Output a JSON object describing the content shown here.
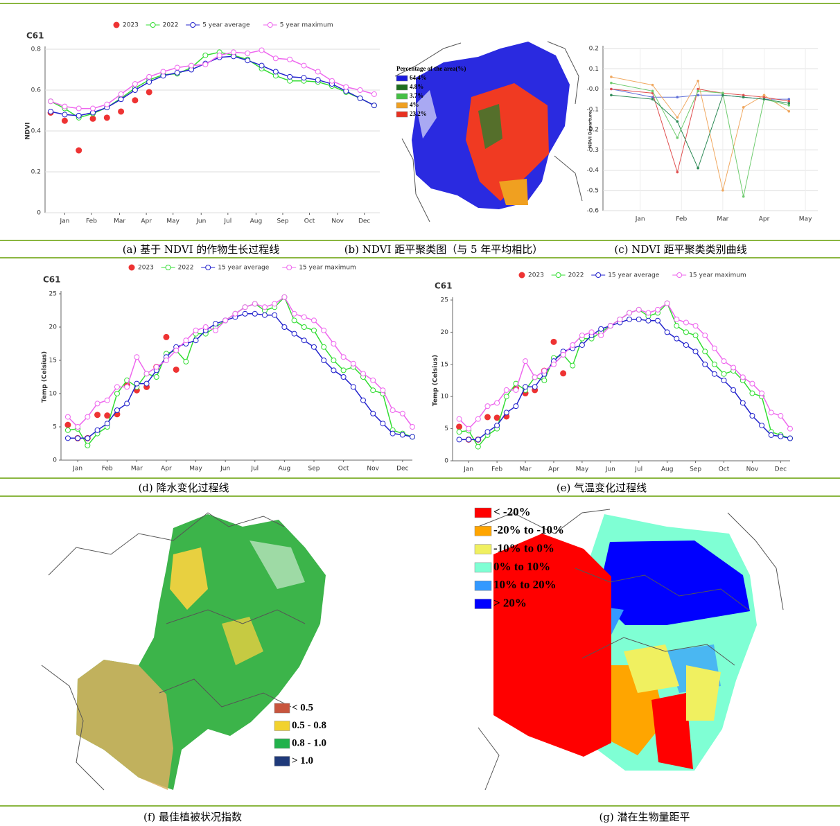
{
  "chart_data": [
    {
      "type": "line",
      "title": "C61",
      "y_label": "NDVI",
      "x": [
        0,
        1,
        2,
        3,
        4,
        5,
        6,
        7,
        8,
        9,
        10,
        11,
        12,
        13,
        14,
        15,
        16,
        17,
        18,
        19,
        20,
        21,
        22,
        23
      ],
      "xlim": [
        -0.4,
        23.4
      ],
      "xticks": [
        {
          "value": 1,
          "label": "Jan"
        },
        {
          "value": 2.9,
          "label": "Feb"
        },
        {
          "value": 4.9,
          "label": "Mar"
        },
        {
          "value": 6.8,
          "label": "Apr"
        },
        {
          "value": 8.7,
          "label": "May"
        },
        {
          "value": 10.7,
          "label": "Jun"
        },
        {
          "value": 12.6,
          "label": "Jul"
        },
        {
          "value": 14.6,
          "label": "Aug"
        },
        {
          "value": 16.5,
          "label": "Sep"
        },
        {
          "value": 18.4,
          "label": "Oct"
        },
        {
          "value": 20.4,
          "label": "Nov"
        },
        {
          "value": 22.3,
          "label": "Dec"
        }
      ],
      "ylim": [
        0,
        0.8
      ],
      "yticks": [
        0,
        0.2,
        0.4,
        0.6,
        0.8
      ],
      "grid": true,
      "series": [
        {
          "name": "2023",
          "color": "#ee3333",
          "marker_only": true,
          "values": [
            0.49,
            0.45,
            0.305,
            0.46,
            0.465,
            0.495,
            0.55,
            0.59,
            null,
            null,
            null,
            null,
            null,
            null,
            null,
            null,
            null,
            null,
            null,
            null,
            null,
            null,
            null,
            null
          ]
        },
        {
          "name": "2022",
          "color": "#33dd33",
          "values": [
            0.545,
            0.51,
            0.465,
            0.485,
            0.515,
            0.56,
            0.61,
            0.65,
            0.675,
            0.68,
            0.71,
            0.77,
            0.785,
            0.77,
            0.75,
            0.705,
            0.67,
            0.645,
            0.645,
            0.64,
            0.62,
            0.59,
            0.56,
            0.525
          ]
        },
        {
          "name": "5 year average",
          "color": "#2222cc",
          "values": [
            0.495,
            0.48,
            0.475,
            0.49,
            0.515,
            0.555,
            0.6,
            0.64,
            0.67,
            0.685,
            0.7,
            0.73,
            0.76,
            0.765,
            0.745,
            0.72,
            0.69,
            0.665,
            0.66,
            0.65,
            0.63,
            0.595,
            0.56,
            0.525
          ]
        },
        {
          "name": "5 year maximum",
          "color": "#ee66ee",
          "values": [
            0.545,
            0.52,
            0.51,
            0.51,
            0.53,
            0.58,
            0.63,
            0.665,
            0.69,
            0.71,
            0.72,
            0.725,
            0.77,
            0.785,
            0.78,
            0.795,
            0.755,
            0.75,
            0.72,
            0.69,
            0.645,
            0.615,
            0.6,
            0.58
          ]
        }
      ],
      "caption": "(a) 基于 NDVI 的作物生长过程线"
    },
    {
      "type": "map",
      "legend_title": "Percentage of the area(%)",
      "legend": [
        {
          "label": "64.4%",
          "color": "#1a1adc"
        },
        {
          "label": "4.8%",
          "color": "#1e6e1e"
        },
        {
          "label": "3.7%",
          "color": "#44c044"
        },
        {
          "label": "4%",
          "color": "#f0a020"
        },
        {
          "label": "23.2%",
          "color": "#e83020"
        }
      ],
      "caption": "(b) NDVI 距平聚类图（与 5 年平均相比）"
    },
    {
      "type": "line",
      "y_label": "NDVI Departure",
      "x": [
        0.3,
        1.3,
        1.9,
        2.4,
        3.0,
        3.5,
        4.0,
        4.6
      ],
      "xlim": [
        0.1,
        5.3
      ],
      "xticks": [
        {
          "value": 1,
          "label": "Jan"
        },
        {
          "value": 2,
          "label": "Feb"
        },
        {
          "value": 3,
          "label": "Mar"
        },
        {
          "value": 4,
          "label": "Apr"
        },
        {
          "value": 5,
          "label": "May"
        }
      ],
      "ylim": [
        -0.6,
        0.2
      ],
      "yticks": [
        -0.6,
        -0.5,
        -0.4,
        -0.3,
        -0.2,
        -0.1,
        {
          "value": 0,
          "label": "-0.0"
        },
        0.1,
        0.2
      ],
      "grid": true,
      "series": [
        {
          "color": "#6070d8",
          "values": [
            0.0,
            -0.04,
            -0.04,
            -0.03,
            -0.03,
            -0.04,
            -0.05,
            -0.05
          ]
        },
        {
          "color": "#e05050",
          "values": [
            0.0,
            -0.02,
            -0.41,
            0.0,
            -0.02,
            -0.03,
            -0.04,
            -0.06
          ]
        },
        {
          "color": "#f0a860",
          "values": [
            0.06,
            0.02,
            -0.14,
            0.04,
            -0.5,
            -0.09,
            -0.03,
            -0.11
          ]
        },
        {
          "color": "#70cc70",
          "values": [
            0.03,
            -0.01,
            -0.24,
            -0.01,
            -0.02,
            -0.53,
            -0.05,
            -0.08
          ]
        },
        {
          "color": "#2e8b57",
          "values": [
            -0.03,
            -0.05,
            -0.16,
            -0.39,
            -0.03,
            -0.04,
            -0.05,
            -0.07
          ]
        }
      ],
      "caption": "(c) NDVI 距平聚类类别曲线"
    },
    {
      "type": "line",
      "title": "C61",
      "y_label": "Temp (Celsius)",
      "x": [
        0,
        1,
        2,
        3,
        4,
        5,
        6,
        7,
        8,
        9,
        10,
        11,
        12,
        13,
        14,
        15,
        16,
        17,
        18,
        19,
        20,
        21,
        22,
        23,
        24,
        25,
        26,
        27,
        28,
        29,
        30,
        31,
        32,
        33,
        34,
        35
      ],
      "xlim": [
        -0.7,
        35
      ],
      "xticks": [
        {
          "value": 1,
          "label": "Jan"
        },
        {
          "value": 4,
          "label": "Feb"
        },
        {
          "value": 7,
          "label": "Mar"
        },
        {
          "value": 10,
          "label": "Apr"
        },
        {
          "value": 13,
          "label": "May"
        },
        {
          "value": 16,
          "label": "Jun"
        },
        {
          "value": 19,
          "label": "Jul"
        },
        {
          "value": 22,
          "label": "Aug"
        },
        {
          "value": 25,
          "label": "Sep"
        },
        {
          "value": 28,
          "label": "Oct"
        },
        {
          "value": 31,
          "label": "Nov"
        },
        {
          "value": 34,
          "label": "Dec"
        }
      ],
      "ylim": [
        0,
        25
      ],
      "yticks": [
        0,
        5,
        10,
        15,
        20,
        25
      ],
      "grid": false,
      "series": [
        {
          "name": "2023",
          "color": "#ee3333",
          "marker_only": true,
          "values": [
            5.3,
            3.3,
            3.3,
            6.8,
            6.7,
            6.9,
            11.3,
            10.5,
            11,
            14,
            18.5,
            13.6,
            null,
            null,
            null,
            null,
            null,
            null,
            null,
            null,
            null,
            null,
            null,
            null,
            null,
            null,
            null,
            null,
            null,
            null,
            null,
            null,
            null,
            null,
            null,
            null
          ]
        },
        {
          "name": "2022",
          "color": "#33dd33",
          "values": [
            4.5,
            4.7,
            2.2,
            4,
            5,
            10,
            12,
            11,
            13,
            12.5,
            16,
            16.5,
            14.8,
            19,
            19,
            20,
            21,
            22,
            23,
            23.5,
            22.5,
            23,
            24.5,
            21,
            20,
            19.5,
            17,
            15,
            13.5,
            14,
            12.5,
            10.5,
            10,
            4.5,
            4,
            3.5
          ]
        },
        {
          "name": "15 year average",
          "color": "#2222cc",
          "values": [
            3.3,
            3.3,
            3.3,
            4.5,
            5.5,
            7.5,
            8.5,
            11.5,
            11.5,
            13.5,
            15.5,
            17,
            17.5,
            18,
            19.5,
            20.5,
            21,
            21.5,
            22,
            22,
            21.8,
            21.8,
            20,
            19,
            18,
            17,
            15,
            13.5,
            12.5,
            11,
            9,
            7,
            5.5,
            4,
            3.8,
            3.5
          ]
        },
        {
          "name": "15 year maximum",
          "color": "#ee66ee",
          "values": [
            6.5,
            5,
            6.5,
            8.5,
            9,
            11,
            11,
            15.5,
            13,
            14,
            15,
            16.5,
            18,
            19.5,
            20,
            19.5,
            21,
            22,
            23,
            23.5,
            23,
            23.5,
            24.5,
            22,
            21.5,
            21,
            19.5,
            17.5,
            15.5,
            14.5,
            13,
            12,
            10.5,
            7.5,
            7,
            5
          ]
        }
      ],
      "caption": "(d) 降水变化过程线"
    },
    {
      "type": "line",
      "title": "C61",
      "y_label": "Temp (Celsius)",
      "x": [
        0,
        1,
        2,
        3,
        4,
        5,
        6,
        7,
        8,
        9,
        10,
        11,
        12,
        13,
        14,
        15,
        16,
        17,
        18,
        19,
        20,
        21,
        22,
        23,
        24,
        25,
        26,
        27,
        28,
        29,
        30,
        31,
        32,
        33,
        34,
        35
      ],
      "xlim": [
        -0.7,
        35
      ],
      "xticks": [
        {
          "value": 1,
          "label": "Jan"
        },
        {
          "value": 4,
          "label": "Feb"
        },
        {
          "value": 7,
          "label": "Mar"
        },
        {
          "value": 10,
          "label": "Apr"
        },
        {
          "value": 13,
          "label": "May"
        },
        {
          "value": 16,
          "label": "Jun"
        },
        {
          "value": 19,
          "label": "Jul"
        },
        {
          "value": 22,
          "label": "Aug"
        },
        {
          "value": 25,
          "label": "Sep"
        },
        {
          "value": 28,
          "label": "Oct"
        },
        {
          "value": 31,
          "label": "Nov"
        },
        {
          "value": 34,
          "label": "Dec"
        }
      ],
      "ylim": [
        0,
        25
      ],
      "yticks": [
        0,
        5,
        10,
        15,
        20,
        25
      ],
      "grid": false,
      "series": [
        {
          "name": "2023",
          "color": "#ee3333",
          "marker_only": true,
          "values": [
            5.3,
            3.3,
            3.3,
            6.8,
            6.7,
            6.9,
            11.3,
            10.5,
            11,
            14,
            18.5,
            13.6,
            null,
            null,
            null,
            null,
            null,
            null,
            null,
            null,
            null,
            null,
            null,
            null,
            null,
            null,
            null,
            null,
            null,
            null,
            null,
            null,
            null,
            null,
            null,
            null
          ]
        },
        {
          "name": "2022",
          "color": "#33dd33",
          "values": [
            4.5,
            4.7,
            2.2,
            4,
            5,
            10,
            12,
            11,
            13,
            12.5,
            16,
            16.5,
            14.8,
            19,
            19,
            20,
            21,
            22,
            23,
            23.5,
            22.5,
            23,
            24.5,
            21,
            20,
            19.5,
            17,
            15,
            13.5,
            14,
            12.5,
            10.5,
            10,
            4.5,
            4,
            3.5
          ]
        },
        {
          "name": "15 year average",
          "color": "#2222cc",
          "values": [
            3.3,
            3.3,
            3.3,
            4.5,
            5.5,
            7.5,
            8.5,
            11.5,
            11.5,
            13.5,
            15.5,
            17,
            17.5,
            18,
            19.5,
            20.5,
            21,
            21.5,
            22,
            22,
            21.8,
            21.8,
            20,
            19,
            18,
            17,
            15,
            13.5,
            12.5,
            11,
            9,
            7,
            5.5,
            4,
            3.8,
            3.5
          ]
        },
        {
          "name": "15 year maximum",
          "color": "#ee66ee",
          "values": [
            6.5,
            5,
            6.5,
            8.5,
            9,
            11,
            11,
            15.5,
            13,
            14,
            15,
            16.5,
            18,
            19.5,
            20,
            19.5,
            21,
            22,
            23,
            23.5,
            23,
            23.5,
            24.5,
            22,
            21.5,
            21,
            19.5,
            17.5,
            15.5,
            14.5,
            13,
            12,
            10.5,
            7.5,
            7,
            5
          ]
        }
      ],
      "caption": "(e) 气温变化过程线"
    },
    {
      "type": "map",
      "legend": [
        {
          "label": "< 0.5",
          "color": "#c8553d"
        },
        {
          "label": "0.5 - 0.8",
          "color": "#f2d22e"
        },
        {
          "label": "0.8 - 1.0",
          "color": "#22b14c"
        },
        {
          "label": "> 1.0",
          "color": "#1f3a7a"
        }
      ],
      "caption": "(f) 最佳植被状况指数"
    },
    {
      "type": "map",
      "legend": [
        {
          "label": "< -20%",
          "color": "#ff0000"
        },
        {
          "label": "-20% to -10%",
          "color": "#ffa500"
        },
        {
          "label": "-10% to 0%",
          "color": "#f0f060"
        },
        {
          "label": "0% to 10%",
          "color": "#7fffd4"
        },
        {
          "label": "10% to 20%",
          "color": "#3399ff"
        },
        {
          "label": "> 20%",
          "color": "#0000ff"
        }
      ],
      "caption": "(g) 潜在生物量距平"
    }
  ]
}
